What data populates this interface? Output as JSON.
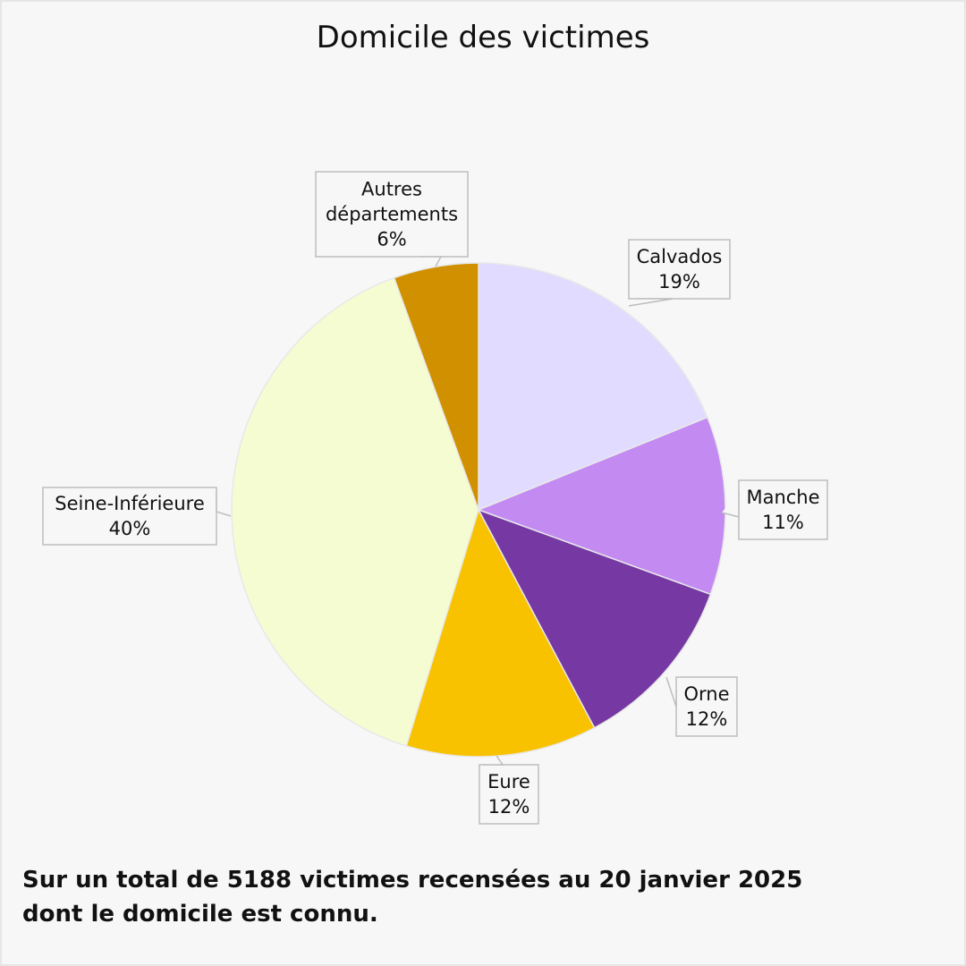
{
  "chart_data": {
    "type": "pie",
    "title": "Domicile des victimes",
    "categories": [
      "Calvados",
      "Manche",
      "Orne",
      "Eure",
      "Seine-Inférieure",
      "Autres départements"
    ],
    "values": [
      19,
      11,
      12,
      12,
      40,
      6
    ],
    "unit": "%",
    "colors": [
      "#e1dcff",
      "#c38af2",
      "#7639a3",
      "#f8c200",
      "#f6fcd2",
      "#d09000"
    ],
    "slice_angles_deg": [
      [
        0,
        68
      ],
      [
        68,
        110
      ],
      [
        110,
        152
      ],
      [
        152,
        197
      ],
      [
        197,
        340
      ],
      [
        340,
        360
      ]
    ],
    "labels": [
      {
        "lines": [
          "Calvados",
          "19%"
        ]
      },
      {
        "lines": [
          "Manche",
          "11%"
        ]
      },
      {
        "lines": [
          "Orne",
          "12%"
        ]
      },
      {
        "lines": [
          "Eure",
          "12%"
        ]
      },
      {
        "lines": [
          "Seine-Inférieure",
          "40%"
        ]
      },
      {
        "lines": [
          "Autres",
          "départements",
          "6%"
        ]
      }
    ],
    "legend": "none",
    "start_angle": "12 o'clock, clockwise",
    "total_victims": 5188
  },
  "title": "Domicile des victimes",
  "footer": {
    "line1": "Sur un total de 5188 victimes recensées au 20 janvier 2025",
    "line2": "dont le domicile est connu."
  }
}
